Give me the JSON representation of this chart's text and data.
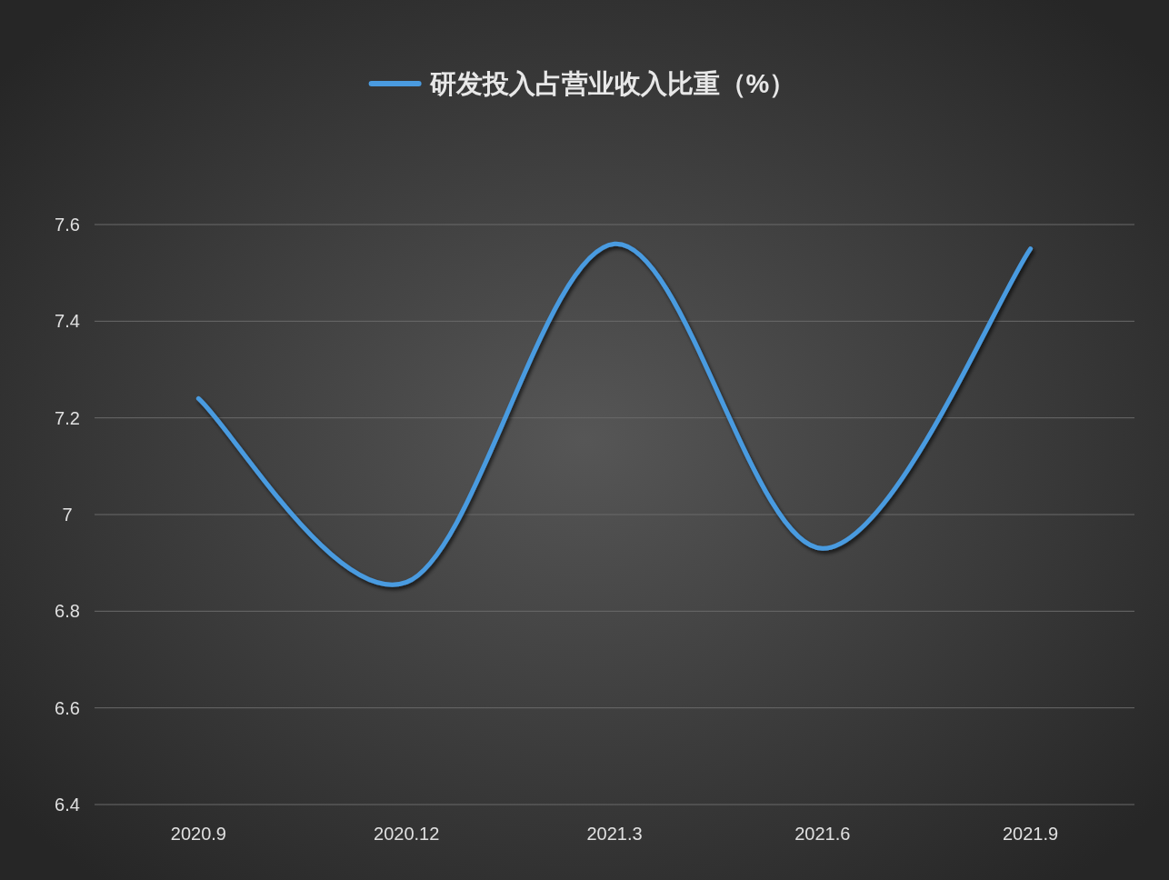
{
  "chart_data": {
    "type": "line",
    "categories": [
      "2020.9",
      "2020.12",
      "2021.3",
      "2021.6",
      "2021.9"
    ],
    "series": [
      {
        "name": "研发投入占营业收入比重（%）",
        "color": "#4a9be0",
        "values": [
          7.24,
          6.86,
          7.56,
          6.93,
          7.55
        ]
      }
    ],
    "ylim": [
      6.4,
      7.6
    ],
    "yticks": [
      {
        "value": 6.4,
        "label": "6.4"
      },
      {
        "value": 6.6,
        "label": "6.6"
      },
      {
        "value": 6.8,
        "label": "6.8"
      },
      7,
      {
        "value": 7.2,
        "label": "7.2"
      },
      {
        "value": 7.4,
        "label": "7.4"
      },
      {
        "value": 7.6,
        "label": "7.6"
      }
    ],
    "grid": "y",
    "legend": "top",
    "line_style": "solid"
  }
}
